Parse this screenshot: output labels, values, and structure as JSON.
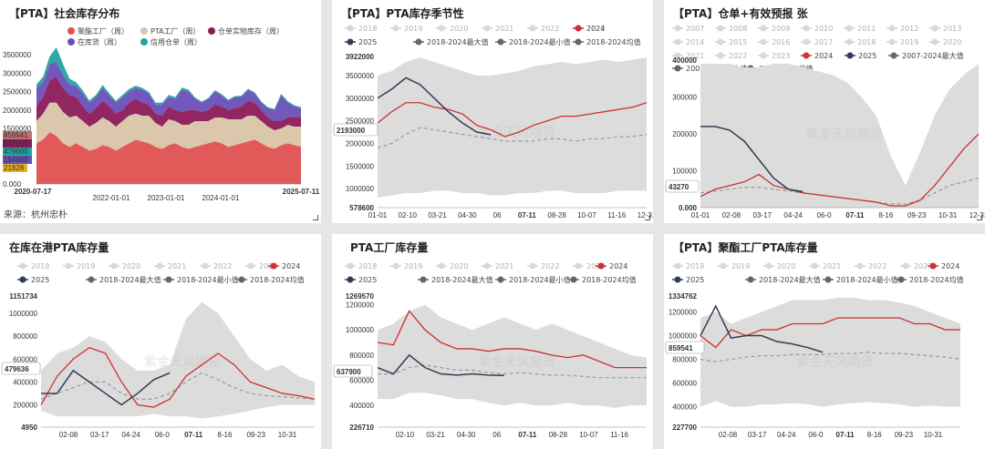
{
  "chart_data": [
    {
      "id": "c1",
      "type": "area",
      "title": "【PTA】社会库存分布",
      "source": "来源：杭州忠朴",
      "legend": [
        {
          "name": "聚酯工厂（周）",
          "color": "#e05050"
        },
        {
          "name": "PTA工厂（周）",
          "color": "#d8c4a8"
        },
        {
          "name": "仓单实物库存（周）",
          "color": "#8b1a5a"
        },
        {
          "name": "在库货（周）",
          "color": "#6a4fb8"
        },
        {
          "name": "信用仓单（周）",
          "color": "#22a5a0"
        }
      ],
      "ylim": [
        0,
        3500000
      ],
      "yticks": [
        "3500000",
        "3000000",
        "2500000",
        "2000000",
        "1500000",
        "1000000",
        "500000",
        "0.000"
      ],
      "xticks": [
        "2020-07-17",
        "2022-01-01",
        "2023-01-01",
        "2024-01-01",
        "2025-07-11"
      ],
      "latest_labels": [
        {
          "text": "859541",
          "color": "#c07070"
        },
        {
          "text": "637900",
          "color": "#8b1a5a"
        },
        {
          "text": "479600",
          "color": "#22a5a0"
        },
        {
          "text": "194600",
          "color": "#6a4fb8"
        },
        {
          "text": "21828",
          "color": "#e8b020"
        }
      ],
      "stacks": {
        "s1": [
          1100000,
          1200000,
          1400000,
          1300000,
          1100000,
          1000000,
          1100000,
          1000000,
          900000,
          950000,
          1050000,
          1000000,
          900000,
          1000000,
          1100000,
          1200000,
          1150000,
          1100000,
          1000000,
          950000,
          1050000,
          1100000,
          1000000,
          950000,
          1000000,
          1050000,
          1100000,
          1150000,
          1100000,
          1000000,
          1050000,
          1100000,
          1150000,
          1200000,
          1100000,
          1000000,
          950000,
          1050000,
          1100000,
          1050000,
          1000000
        ],
        "s2": [
          600000,
          700000,
          800000,
          900000,
          850000,
          800000,
          750000,
          700000,
          650000,
          700000,
          750000,
          700000,
          650000,
          700000,
          750000,
          700000,
          700000,
          750000,
          650000,
          600000,
          700000,
          600000,
          600000,
          650000,
          700000,
          650000,
          600000,
          650000,
          700000,
          750000,
          700000,
          650000,
          700000,
          650000,
          600000,
          550000,
          500000,
          450000,
          500000,
          500000,
          550000
        ],
        "s3": [
          400000,
          450000,
          600000,
          700000,
          650000,
          600000,
          500000,
          400000,
          350000,
          400000,
          450000,
          400000,
          350000,
          300000,
          350000,
          400000,
          350000,
          300000,
          250000,
          300000,
          350000,
          300000,
          350000,
          400000,
          300000,
          250000,
          300000,
          350000,
          300000,
          250000,
          300000,
          350000,
          400000,
          350000,
          300000,
          250000,
          250000,
          200000,
          200000,
          250000,
          250000
        ],
        "s4": [
          500000,
          400000,
          450000,
          400000,
          350000,
          300000,
          300000,
          350000,
          300000,
          300000,
          350000,
          300000,
          300000,
          350000,
          300000,
          300000,
          350000,
          300000,
          250000,
          300000,
          250000,
          300000,
          600000,
          500000,
          300000,
          250000,
          300000,
          350000,
          300000,
          250000,
          300000,
          250000,
          300000,
          250000,
          200000,
          250000,
          300000,
          700000,
          400000,
          300000,
          250000
        ],
        "s5": [
          100000,
          150000,
          200000,
          400000,
          300000,
          150000,
          100000,
          80000,
          60000,
          60000,
          80000,
          60000,
          50000,
          60000,
          70000,
          60000,
          50000,
          40000,
          50000,
          50000,
          60000,
          50000,
          60000,
          50000,
          40000,
          30000,
          30000,
          40000,
          30000,
          30000,
          30000,
          40000,
          30000,
          30000,
          30000,
          30000,
          30000,
          40000,
          40000,
          30000,
          30000
        ]
      }
    },
    {
      "id": "c2",
      "type": "line",
      "title": "【PTA】PTA库存季节性",
      "legend_years": [
        "2018",
        "2019",
        "2020",
        "2021",
        "2022",
        "2023"
      ],
      "legend_main": [
        {
          "name": "2024",
          "color": "#d03030"
        },
        {
          "name": "2025",
          "color": "#2f3e55"
        },
        {
          "name": "2018-2024最大值",
          "color": "#666666"
        },
        {
          "name": "2018-2024最小值",
          "color": "#666666"
        },
        {
          "name": "2018-2024均值",
          "color": "#666666"
        }
      ],
      "ylim": [
        578600,
        3922000
      ],
      "yticks": [
        {
          "v": 3922000,
          "t": "3922000"
        },
        {
          "v": 3500000,
          "t": "3500000"
        },
        {
          "v": 3000000,
          "t": "3000000"
        },
        {
          "v": 2500000,
          "t": "2500000"
        },
        {
          "v": 2000000,
          "t": "2000000"
        },
        {
          "v": 1500000,
          "t": "1500000"
        },
        {
          "v": 1000000,
          "t": "1000000"
        },
        {
          "v": 578600,
          "t": "578600"
        }
      ],
      "xticks": [
        "01-01",
        "02-10",
        "03-21",
        "04-30",
        "06",
        "07-11",
        "08-28",
        "10-07",
        "11-16",
        "12-31"
      ],
      "highlight_x": "07-11",
      "value_label": "2193000",
      "band_max": [
        3500000,
        3600000,
        3800000,
        3900000,
        3800000,
        3700000,
        3600000,
        3500000,
        3500000,
        3550000,
        3600000,
        3700000,
        3750000,
        3800000,
        3750000,
        3800000,
        3850000,
        3800000,
        3850000,
        3900000
      ],
      "band_min": [
        800000,
        850000,
        900000,
        900000,
        950000,
        950000,
        900000,
        900000,
        850000,
        850000,
        900000,
        900000,
        950000,
        950000,
        900000,
        900000,
        900000,
        950000,
        950000,
        950000
      ],
      "series_2024": [
        2450000,
        2700000,
        2900000,
        2900000,
        2800000,
        2750000,
        2650000,
        2400000,
        2300000,
        2150000,
        2250000,
        2400000,
        2500000,
        2600000,
        2600000,
        2650000,
        2700000,
        2750000,
        2800000,
        2900000
      ],
      "series_2025": [
        3000000,
        3200000,
        3450000,
        3300000,
        3000000,
        2700000,
        2450000,
        2250000,
        2193000
      ],
      "series_avg": [
        1900000,
        2000000,
        2200000,
        2350000,
        2300000,
        2250000,
        2200000,
        2150000,
        2100000,
        2050000,
        2050000,
        2050000,
        2100000,
        2100000,
        2050000,
        2100000,
        2100000,
        2150000,
        2150000,
        2200000
      ]
    },
    {
      "id": "c3",
      "type": "line",
      "title": "【PTA】仓单+有效预报 张",
      "legend_years": [
        "2007",
        "2008",
        "2009",
        "2010",
        "2011",
        "2012",
        "2013",
        "2014",
        "2015",
        "2016",
        "2017",
        "2018",
        "2019",
        "2020",
        "2021",
        "2022",
        "2023"
      ],
      "legend_main": [
        {
          "name": "2024",
          "color": "#d03030"
        },
        {
          "name": "2025",
          "color": "#2f3e55"
        },
        {
          "name": "2007-2024最大值",
          "color": "#666666"
        },
        {
          "name": "2007-2024最小值",
          "color": "#666666"
        },
        {
          "name": "2007-2024均值",
          "color": "#666666"
        }
      ],
      "ylim": [
        0,
        400000
      ],
      "yticks": [
        {
          "v": 400000,
          "t": "400000"
        },
        {
          "v": 300000,
          "t": "300000"
        },
        {
          "v": 200000,
          "t": "200000"
        },
        {
          "v": 100000,
          "t": "100000"
        },
        {
          "v": 0,
          "t": "0.000"
        }
      ],
      "xticks": [
        "01-01",
        "02-08",
        "03-17",
        "04-24",
        "06-0",
        "07-11",
        "8-16",
        "09-23",
        "10-31",
        "12-31"
      ],
      "highlight_x": "07-11",
      "value_label": "43270",
      "band_max": [
        390000,
        390000,
        390000,
        380000,
        380000,
        390000,
        390000,
        380000,
        370000,
        360000,
        340000,
        300000,
        250000,
        140000,
        60000,
        150000,
        250000,
        320000,
        360000,
        390000
      ],
      "band_min": [
        0,
        0,
        0,
        0,
        0,
        0,
        0,
        0,
        0,
        0,
        0,
        0,
        0,
        0,
        0,
        0,
        0,
        0,
        0,
        0
      ],
      "series_2024": [
        30000,
        50000,
        60000,
        70000,
        90000,
        60000,
        50000,
        40000,
        35000,
        30000,
        25000,
        20000,
        15000,
        5000,
        5000,
        20000,
        60000,
        110000,
        160000,
        200000
      ],
      "series_2025": [
        220000,
        220000,
        210000,
        180000,
        130000,
        80000,
        50000,
        43270
      ],
      "series_avg": [
        40000,
        45000,
        50000,
        55000,
        55000,
        50000,
        45000,
        40000,
        35000,
        30000,
        25000,
        20000,
        15000,
        10000,
        10000,
        20000,
        40000,
        60000,
        70000,
        80000
      ]
    },
    {
      "id": "c4",
      "type": "line",
      "title": "在库在港PTA库存量",
      "legend_years": [
        "2018",
        "2019",
        "2020",
        "2021",
        "2022",
        "2023"
      ],
      "legend_main": [
        {
          "name": "2024",
          "color": "#d03030"
        },
        {
          "name": "2025",
          "color": "#2f3e55"
        },
        {
          "name": "2018-2024最大值",
          "color": "#666666"
        },
        {
          "name": "2018-2024最小值",
          "color": "#666666"
        },
        {
          "name": "2018-2024均值",
          "color": "#666666"
        }
      ],
      "ylim": [
        4950,
        1151734
      ],
      "yticks": [
        {
          "v": 1151734,
          "t": "1151734"
        },
        {
          "v": 1000000,
          "t": "1000000"
        },
        {
          "v": 800000,
          "t": "800000"
        },
        {
          "v": 600000,
          "t": "600000"
        },
        {
          "v": 400000,
          "t": "400000"
        },
        {
          "v": 200000,
          "t": "200000"
        },
        {
          "v": 4950,
          "t": "4950"
        }
      ],
      "xticks": [
        "02-08",
        "03-17",
        "04-24",
        "06-0",
        "07-11",
        "8-16",
        "09-23",
        "10-31"
      ],
      "highlight_x": "07-11",
      "value_label": "479636",
      "band_max": [
        500000,
        650000,
        700000,
        800000,
        750000,
        600000,
        500000,
        500000,
        550000,
        950000,
        1100000,
        1000000,
        800000,
        600000,
        500000,
        550000,
        450000,
        400000
      ],
      "band_min": [
        150000,
        100000,
        100000,
        100000,
        100000,
        100000,
        100000,
        120000,
        100000,
        100000,
        80000,
        100000,
        120000,
        150000,
        180000,
        200000,
        200000,
        200000
      ],
      "series_2024": [
        200000,
        450000,
        600000,
        700000,
        650000,
        400000,
        200000,
        180000,
        250000,
        450000,
        550000,
        650000,
        550000,
        400000,
        350000,
        300000,
        280000,
        250000
      ],
      "series_2025": [
        300000,
        300000,
        500000,
        400000,
        300000,
        200000,
        300000,
        420000,
        479636
      ],
      "series_avg": [
        250000,
        300000,
        350000,
        400000,
        400000,
        300000,
        250000,
        250000,
        300000,
        400000,
        480000,
        420000,
        350000,
        300000,
        280000,
        270000,
        260000,
        250000
      ]
    },
    {
      "id": "c5",
      "type": "line",
      "title": "PTA工厂库存量",
      "legend_years": [
        "2018",
        "2019",
        "2020",
        "2021",
        "2022",
        "2023"
      ],
      "legend_main": [
        {
          "name": "2024",
          "color": "#d03030"
        },
        {
          "name": "2025",
          "color": "#2f3e55"
        },
        {
          "name": "2018-2024最大值",
          "color": "#666666"
        },
        {
          "name": "2018-2024最小值",
          "color": "#666666"
        },
        {
          "name": "2018-2024均值",
          "color": "#666666"
        }
      ],
      "ylim": [
        226710,
        1269570
      ],
      "yticks": [
        {
          "v": 1269570,
          "t": "1269570"
        },
        {
          "v": 1200000,
          "t": "1200000"
        },
        {
          "v": 1000000,
          "t": "1000000"
        },
        {
          "v": 800000,
          "t": "800000"
        },
        {
          "v": 600000,
          "t": "600000"
        },
        {
          "v": 400000,
          "t": "400000"
        },
        {
          "v": 226710,
          "t": "226710"
        }
      ],
      "xticks": [
        "02-10",
        "03-21",
        "04-30",
        "06",
        "07-11",
        "08-28",
        "10-07",
        "11-16"
      ],
      "highlight_x": "07-11",
      "value_label": "637900",
      "band_max": [
        1000000,
        1050000,
        1150000,
        1200000,
        1100000,
        1050000,
        1000000,
        1050000,
        1100000,
        1050000,
        1000000,
        1050000,
        1000000,
        950000,
        900000,
        850000,
        800000,
        780000
      ],
      "band_min": [
        450000,
        450000,
        500000,
        500000,
        480000,
        450000,
        450000,
        420000,
        400000,
        420000,
        400000,
        400000,
        420000,
        400000,
        400000,
        380000,
        400000,
        400000
      ],
      "series_2024": [
        900000,
        880000,
        1150000,
        1000000,
        900000,
        850000,
        850000,
        830000,
        850000,
        850000,
        830000,
        800000,
        780000,
        800000,
        750000,
        700000,
        700000,
        700000
      ],
      "series_2025": [
        700000,
        650000,
        800000,
        700000,
        650000,
        640000,
        650000,
        640000,
        637900
      ],
      "series_avg": [
        650000,
        650000,
        700000,
        720000,
        700000,
        680000,
        680000,
        660000,
        650000,
        660000,
        650000,
        640000,
        640000,
        630000,
        620000,
        620000,
        620000,
        620000
      ]
    },
    {
      "id": "c6",
      "type": "line",
      "title": "【PTA】聚酯工厂PTA库存量",
      "legend_years": [
        "2018",
        "2019",
        "2020",
        "2021",
        "2022",
        "2023"
      ],
      "legend_main": [
        {
          "name": "2024",
          "color": "#d03030"
        },
        {
          "name": "2025",
          "color": "#2f3e55"
        },
        {
          "name": "2018-2024最大值",
          "color": "#666666"
        },
        {
          "name": "2018-2024最小值",
          "color": "#666666"
        },
        {
          "name": "2018-2024均值",
          "color": "#666666"
        }
      ],
      "ylim": [
        227700,
        1334762
      ],
      "yticks": [
        {
          "v": 1334762,
          "t": "1334762"
        },
        {
          "v": 1200000,
          "t": "1200000"
        },
        {
          "v": 1000000,
          "t": "1000000"
        },
        {
          "v": 800000,
          "t": "800000"
        },
        {
          "v": 600000,
          "t": "600000"
        },
        {
          "v": 400000,
          "t": "400000"
        },
        {
          "v": 227700,
          "t": "227700"
        }
      ],
      "xticks": [
        "02-08",
        "03-17",
        "04-24",
        "06-0",
        "07-11",
        "8-16",
        "09-23",
        "10-31"
      ],
      "highlight_x": "07-11",
      "value_label": "859541",
      "band_max": [
        1150000,
        1200000,
        1100000,
        1150000,
        1200000,
        1250000,
        1300000,
        1300000,
        1300000,
        1320000,
        1320000,
        1300000,
        1300000,
        1280000,
        1250000,
        1200000,
        1150000,
        1100000
      ],
      "band_min": [
        400000,
        450000,
        400000,
        400000,
        420000,
        420000,
        430000,
        420000,
        400000,
        420000,
        430000,
        440000,
        430000,
        420000,
        400000,
        410000,
        400000,
        400000
      ],
      "series_2024": [
        1000000,
        900000,
        1050000,
        1000000,
        1050000,
        1050000,
        1100000,
        1100000,
        1100000,
        1150000,
        1150000,
        1150000,
        1150000,
        1150000,
        1100000,
        1100000,
        1050000,
        1050000
      ],
      "series_2025": [
        1000000,
        1250000,
        980000,
        1000000,
        1000000,
        950000,
        930000,
        900000,
        859541
      ],
      "series_avg": [
        800000,
        780000,
        800000,
        820000,
        830000,
        830000,
        840000,
        840000,
        840000,
        850000,
        850000,
        860000,
        850000,
        850000,
        840000,
        830000,
        820000,
        800000
      ]
    }
  ]
}
